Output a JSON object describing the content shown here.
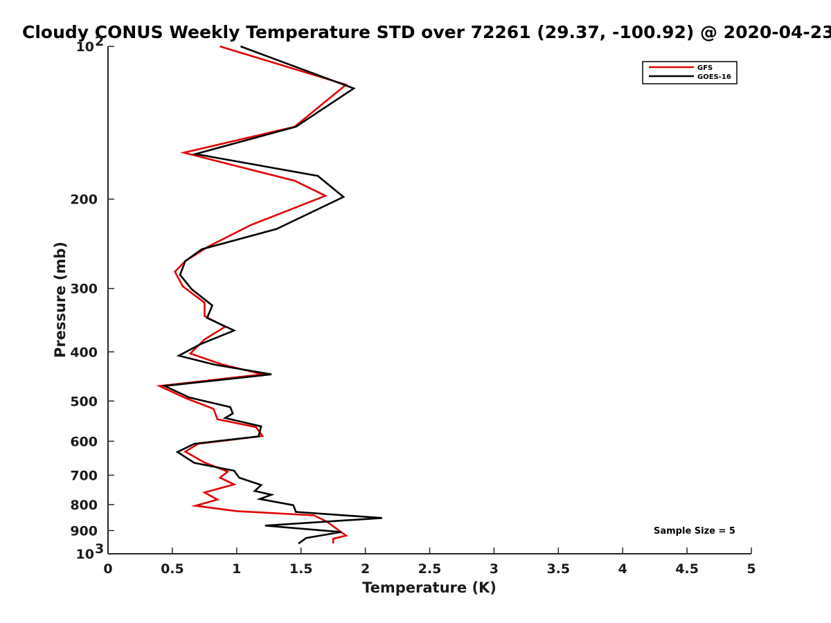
{
  "chart_data": {
    "type": "line",
    "title": "Cloudy CONUS Weekly Temperature STD over 72261 (29.37, -100.92) @ 2020-04-23",
    "xlabel": "Temperature (K)",
    "ylabel": "Pressure (mb)",
    "xlim": [
      0,
      5
    ],
    "ylim": [
      100,
      1000
    ],
    "y_scale": "log",
    "y_reversed": true,
    "x_ticks": [
      {
        "value": 0,
        "label": "0"
      },
      {
        "value": 0.5,
        "label": "0.5"
      },
      {
        "value": 1,
        "label": "1"
      },
      {
        "value": 1.5,
        "label": "1.5"
      },
      {
        "value": 2,
        "label": "2"
      },
      {
        "value": 2.5,
        "label": "2.5"
      },
      {
        "value": 3,
        "label": "3"
      },
      {
        "value": 3.5,
        "label": "3.5"
      },
      {
        "value": 4,
        "label": "4"
      },
      {
        "value": 4.5,
        "label": "4.5"
      },
      {
        "value": 5,
        "label": "5"
      }
    ],
    "y_ticks": [
      {
        "value": 100,
        "base": "10",
        "exp": "2"
      },
      {
        "value": 200,
        "base": "200",
        "exp": ""
      },
      {
        "value": 300,
        "base": "300",
        "exp": ""
      },
      {
        "value": 400,
        "base": "400",
        "exp": ""
      },
      {
        "value": 500,
        "base": "500",
        "exp": ""
      },
      {
        "value": 600,
        "base": "600",
        "exp": ""
      },
      {
        "value": 700,
        "base": "700",
        "exp": ""
      },
      {
        "value": 800,
        "base": "800",
        "exp": ""
      },
      {
        "value": 900,
        "base": "900",
        "exp": ""
      },
      {
        "value": 1000,
        "base": "10",
        "exp": "3"
      }
    ],
    "grid": false,
    "legend_position": "top-right",
    "annotation": "Sample Size = 5",
    "series": [
      {
        "name": "GFS",
        "color": "#e00000",
        "points": [
          [
            0.87,
            100
          ],
          [
            1.85,
            119
          ],
          [
            1.45,
            144
          ],
          [
            0.59,
            162
          ],
          [
            1.45,
            184
          ],
          [
            1.69,
            197
          ],
          [
            1.11,
            225
          ],
          [
            0.78,
            248
          ],
          [
            0.6,
            265
          ],
          [
            0.52,
            278
          ],
          [
            0.58,
            297
          ],
          [
            0.75,
            320
          ],
          [
            0.75,
            340
          ],
          [
            0.91,
            357
          ],
          [
            0.75,
            378
          ],
          [
            0.64,
            403
          ],
          [
            0.88,
            423
          ],
          [
            1.2,
            443
          ],
          [
            0.4,
            467
          ],
          [
            0.6,
            493
          ],
          [
            0.82,
            518
          ],
          [
            0.85,
            543
          ],
          [
            1.15,
            563
          ],
          [
            1.2,
            586
          ],
          [
            0.7,
            607
          ],
          [
            0.6,
            629
          ],
          [
            0.75,
            661
          ],
          [
            0.93,
            689
          ],
          [
            0.87,
            708
          ],
          [
            0.98,
            730
          ],
          [
            0.75,
            757
          ],
          [
            0.85,
            782
          ],
          [
            0.68,
            804
          ],
          [
            1.0,
            824
          ],
          [
            1.6,
            840
          ],
          [
            1.7,
            864
          ],
          [
            1.85,
            921
          ],
          [
            1.75,
            934
          ],
          [
            1.75,
            955
          ]
        ]
      },
      {
        "name": "GOES-16",
        "color": "#000000",
        "points": [
          [
            1.03,
            100
          ],
          [
            1.91,
            121
          ],
          [
            1.46,
            144
          ],
          [
            0.68,
            163
          ],
          [
            1.63,
            180
          ],
          [
            1.83,
            198
          ],
          [
            1.31,
            229
          ],
          [
            0.73,
            251
          ],
          [
            0.6,
            265
          ],
          [
            0.56,
            282
          ],
          [
            0.65,
            301
          ],
          [
            0.81,
            324
          ],
          [
            0.77,
            343
          ],
          [
            0.98,
            363
          ],
          [
            0.72,
            386
          ],
          [
            0.55,
            407
          ],
          [
            0.83,
            424
          ],
          [
            1.27,
            443
          ],
          [
            0.44,
            467
          ],
          [
            0.63,
            492
          ],
          [
            0.95,
            514
          ],
          [
            0.97,
            529
          ],
          [
            0.91,
            540
          ],
          [
            1.19,
            561
          ],
          [
            1.17,
            587
          ],
          [
            0.67,
            607
          ],
          [
            0.54,
            630
          ],
          [
            0.67,
            662
          ],
          [
            0.98,
            686
          ],
          [
            1.02,
            708
          ],
          [
            1.19,
            732
          ],
          [
            1.14,
            752
          ],
          [
            1.27,
            765
          ],
          [
            1.18,
            780
          ],
          [
            1.44,
            802
          ],
          [
            1.46,
            827
          ],
          [
            2.13,
            850
          ],
          [
            1.22,
            880
          ],
          [
            1.81,
            906
          ],
          [
            1.54,
            931
          ],
          [
            1.48,
            955
          ]
        ]
      }
    ]
  }
}
